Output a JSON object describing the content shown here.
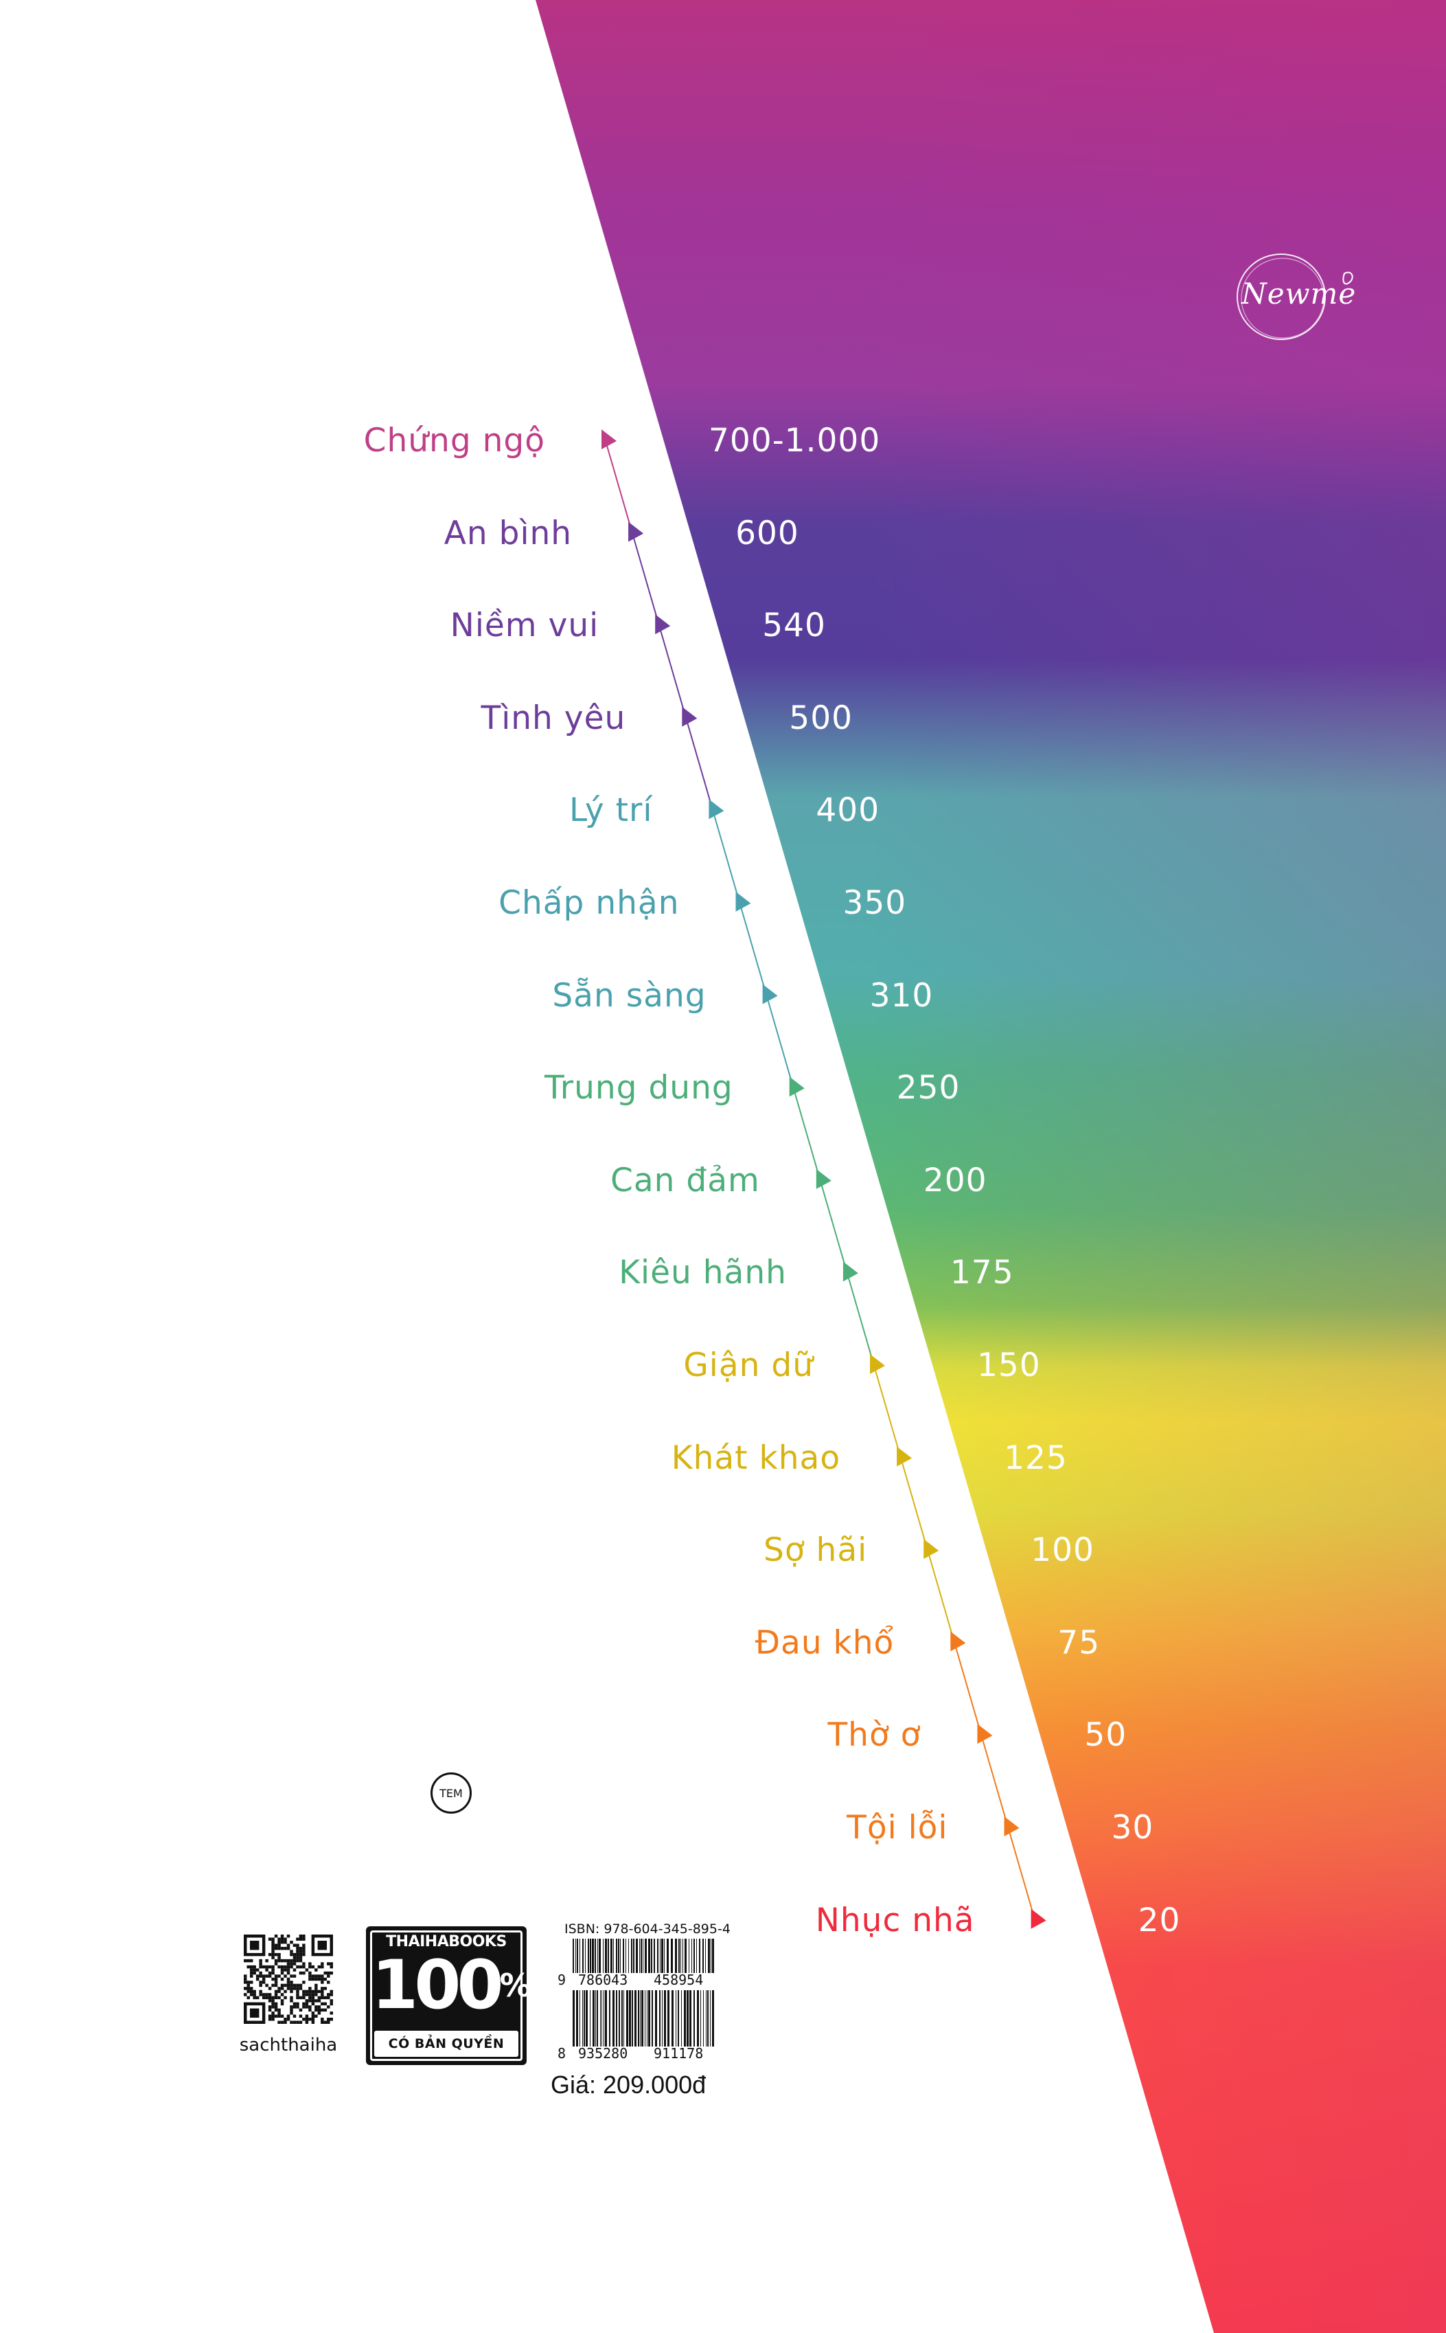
{
  "publisher_logo": {
    "text": "Newme"
  },
  "scale": {
    "colors": {
      "magenta": "#bf3f86",
      "purple": "#6d3d9a",
      "teal": "#4aa1ad",
      "green": "#4cae78",
      "yellow": "#d7b312",
      "orange": "#f27a1c",
      "red": "#ee2a3c"
    },
    "levels": [
      {
        "emotion": "Chứng ngộ",
        "value": "700-1.000",
        "color": "#bf3f86"
      },
      {
        "emotion": "An bình",
        "value": "600",
        "color": "#6d3d9a"
      },
      {
        "emotion": "Niềm vui",
        "value": "540",
        "color": "#6d3d9a"
      },
      {
        "emotion": "Tình yêu",
        "value": "500",
        "color": "#6d3d9a"
      },
      {
        "emotion": "Lý trí",
        "value": "400",
        "color": "#4aa1ad"
      },
      {
        "emotion": "Chấp nhận",
        "value": "350",
        "color": "#4aa1ad"
      },
      {
        "emotion": "Sẵn sàng",
        "value": "310",
        "color": "#4aa1ad"
      },
      {
        "emotion": "Trung dung",
        "value": "250",
        "color": "#4cae78"
      },
      {
        "emotion": "Can đảm",
        "value": "200",
        "color": "#4cae78"
      },
      {
        "emotion": "Kiêu hãnh",
        "value": "175",
        "color": "#4cae78"
      },
      {
        "emotion": "Giận dữ",
        "value": "150",
        "color": "#d7b312"
      },
      {
        "emotion": "Khát khao",
        "value": "125",
        "color": "#d7b312"
      },
      {
        "emotion": "Sợ hãi",
        "value": "100",
        "color": "#d7b312"
      },
      {
        "emotion": "Đau khổ",
        "value": "75",
        "color": "#f27a1c"
      },
      {
        "emotion": "Thờ ơ",
        "value": "50",
        "color": "#f27a1c"
      },
      {
        "emotion": "Tội lỗi",
        "value": "30",
        "color": "#f27a1c"
      },
      {
        "emotion": "Nhục nhã",
        "value": "20",
        "color": "#ee2a3c"
      }
    ]
  },
  "stamp": {
    "text": "TEM"
  },
  "qr": {
    "caption": "sachthaiha"
  },
  "badge": {
    "brand": "THAIHABOOKS",
    "number": "100",
    "percent": "%",
    "subtitle": "CÓ BẢN QUYỀN"
  },
  "isbn": {
    "label": "ISBN: 978-604-345-895-4",
    "barcode1": {
      "lead": "9",
      "left": "786043",
      "right": "458954"
    },
    "barcode2": {
      "lead": "8",
      "left": "935280",
      "right": "911178"
    }
  },
  "price": "Giá: 209.000đ"
}
